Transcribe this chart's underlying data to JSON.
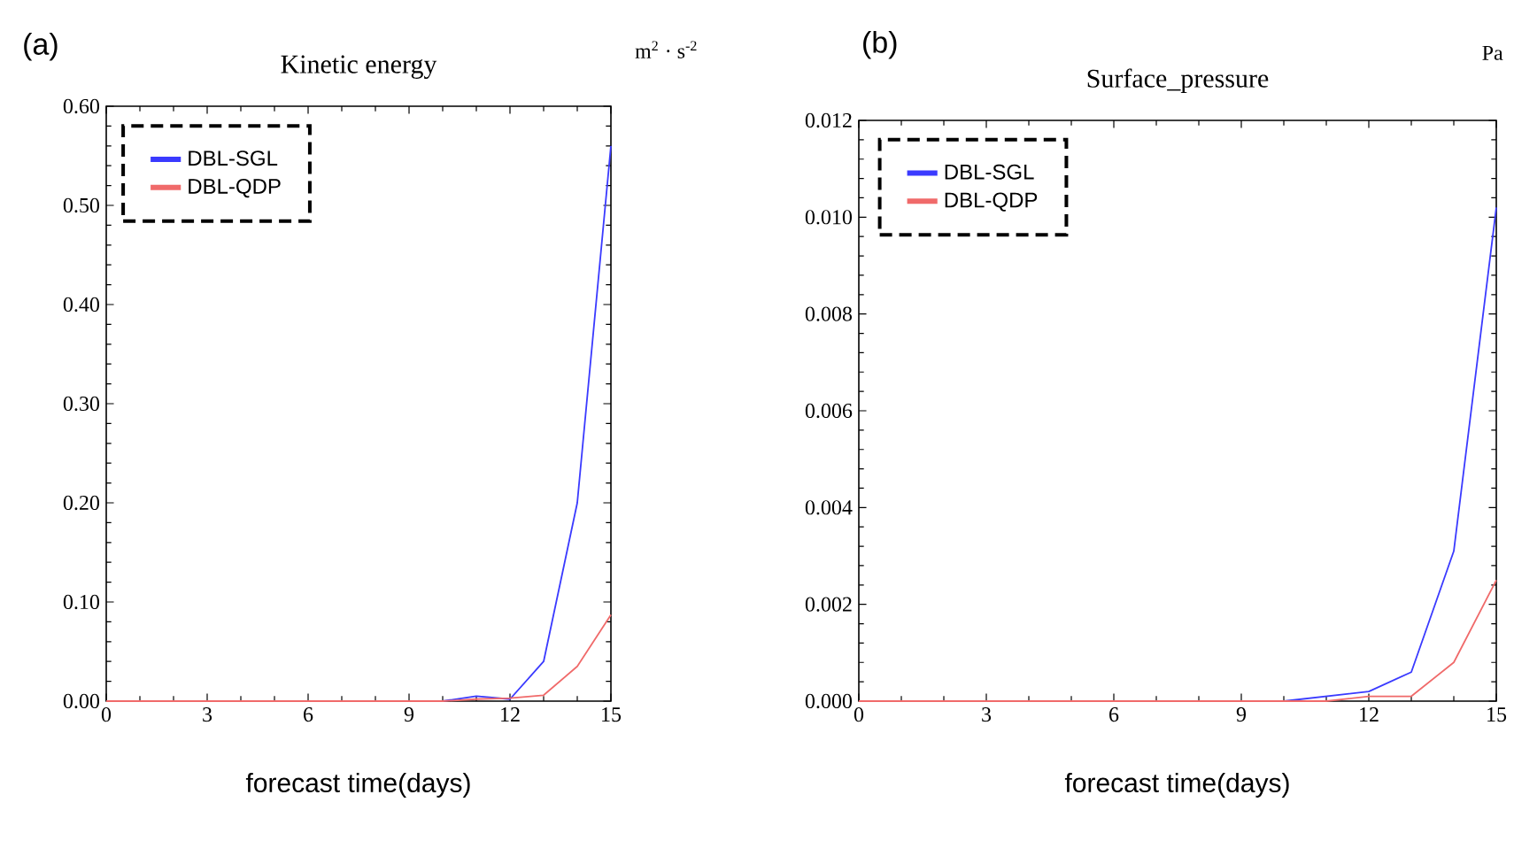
{
  "chart_data": [
    {
      "type": "line",
      "title": "Kinetic energy",
      "xlabel": "forecast time(days)",
      "annotations": [
        "(a)",
        "m$^{2}$ · s$^{-2}$"
      ],
      "x": [
        0,
        1,
        2,
        3,
        4,
        5,
        6,
        7,
        8,
        9,
        10,
        11,
        12,
        13,
        14,
        15
      ],
      "series": [
        {
          "name": "DBL-SGL",
          "color": "#3a3aff",
          "values": [
            null,
            null,
            null,
            null,
            null,
            null,
            null,
            null,
            null,
            null,
            0,
            0.005,
            0.002,
            0.04,
            0.2,
            0.56
          ]
        },
        {
          "name": "DBL-QDP",
          "color": "#f06a6a",
          "values": [
            0,
            0,
            0,
            0,
            0,
            0,
            0,
            0,
            0,
            0,
            0,
            0.002,
            0.003,
            0.006,
            0.035,
            0.087
          ]
        }
      ],
      "xlim": [
        0,
        15
      ],
      "ylim": [
        0,
        0.6
      ],
      "xticks": [
        0,
        3,
        6,
        9,
        12,
        15
      ],
      "yticks": [
        {
          "value": 0,
          "label": "0.00"
        },
        {
          "value": 0.1,
          "label": "0.10"
        },
        {
          "value": 0.2,
          "label": "0.20"
        },
        {
          "value": 0.3,
          "label": "0.30"
        },
        {
          "value": 0.4,
          "label": "0.40"
        },
        {
          "value": 0.5,
          "label": "0.50"
        },
        {
          "value": 0.6,
          "label": "0.60"
        }
      ],
      "legend": "top left",
      "marker": "none",
      "line_style": "solid",
      "grid": false
    },
    {
      "type": "line",
      "title": "Surface_pressure",
      "xlabel": "forecast time(days)",
      "annotations": [
        "(b)",
        "Pa"
      ],
      "x": [
        0,
        1,
        2,
        3,
        4,
        5,
        6,
        7,
        8,
        9,
        10,
        11,
        12,
        13,
        14,
        15
      ],
      "series": [
        {
          "name": "DBL-SGL",
          "color": "#3a3aff",
          "values": [
            null,
            null,
            null,
            null,
            null,
            null,
            null,
            null,
            null,
            null,
            0,
            0.0001,
            0.0002,
            0.0006,
            0.0031,
            0.0102
          ]
        },
        {
          "name": "DBL-QDP",
          "color": "#f06a6a",
          "values": [
            0,
            0,
            0,
            0,
            0,
            0,
            0,
            0,
            0,
            0,
            0,
            0,
            0.0001,
            0.0001,
            0.0008,
            0.0025
          ]
        }
      ],
      "xlim": [
        0,
        15
      ],
      "ylim": [
        0,
        0.012
      ],
      "xticks": [
        0,
        3,
        6,
        9,
        12,
        15
      ],
      "yticks": [
        {
          "value": 0,
          "label": "0.000"
        },
        {
          "value": 0.002,
          "label": "0.002"
        },
        {
          "value": 0.004,
          "label": "0.004"
        },
        {
          "value": 0.006,
          "label": "0.006"
        },
        {
          "value": 0.008,
          "label": "0.008"
        },
        {
          "value": 0.01,
          "label": "0.010"
        },
        {
          "value": 0.012,
          "label": "0.012"
        }
      ],
      "legend": "top left",
      "marker": "none",
      "line_style": "solid",
      "grid": false
    }
  ]
}
